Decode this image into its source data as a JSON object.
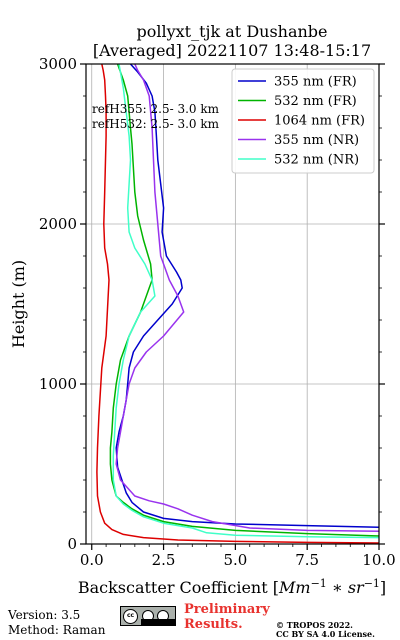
{
  "title_line1": "pollyxt_tjk at Dushanbe",
  "title_line2": "[Averaged] 20221107 13:48-15:17",
  "annotations": [
    "refH355:  2.5- 3.0 km",
    "refH532:  2.5- 3.0 km"
  ],
  "footer": {
    "version": "Version: 3.5",
    "method": "Method: Raman",
    "preliminary_line1": "Preliminary",
    "preliminary_line2": "Results.",
    "copyright_line1": "© TROPOS 2022.",
    "copyright_line2": "CC BY SA 4.0 License.",
    "license_badge_icon": "cc-by-sa-icon"
  },
  "chart_data": {
    "type": "line",
    "title": "pollyxt_tjk at Dushanbe\n[Averaged] 20221107 13:48-15:17",
    "xlabel": "Backscatter Coefficient [Mm^-1 * sr^-1]",
    "ylabel": "Height (m)",
    "xlim": [
      -0.2,
      10
    ],
    "ylim": [
      0,
      3000
    ],
    "xticks": [
      0.0,
      2.5,
      5.0,
      7.5,
      10.0
    ],
    "xtick_labels": [
      "0.0",
      "2.5",
      "5.0",
      "7.5",
      "10.0"
    ],
    "yticks": [
      0,
      1000,
      2000,
      3000
    ],
    "ytick_labels": [
      "0",
      "1000",
      "2000",
      "3000"
    ],
    "grid": true,
    "legend_position": "top-right",
    "series": [
      {
        "name": "355 nm (FR)",
        "color": "#0000cc",
        "x": [
          10.0,
          7.5,
          5.0,
          3.5,
          2.5,
          1.8,
          1.4,
          1.2,
          1.05,
          0.9,
          0.85,
          0.95,
          1.1,
          1.2,
          1.25,
          1.3,
          1.45,
          1.8,
          2.3,
          2.8,
          3.15,
          3.1,
          2.95,
          2.6,
          2.45,
          2.5,
          2.4,
          2.3,
          2.25,
          2.2,
          2.1,
          1.9,
          1.6,
          1.35
        ],
        "y": [
          105,
          115,
          125,
          140,
          160,
          200,
          260,
          320,
          400,
          480,
          600,
          700,
          800,
          900,
          1000,
          1100,
          1200,
          1300,
          1400,
          1500,
          1600,
          1650,
          1700,
          1800,
          1950,
          2100,
          2250,
          2400,
          2550,
          2700,
          2800,
          2880,
          2950,
          3000
        ]
      },
      {
        "name": "532 nm (FR)",
        "color": "#00b400",
        "x": [
          10.0,
          7.5,
          5.0,
          3.5,
          2.5,
          1.8,
          1.4,
          1.1,
          0.85,
          0.7,
          0.65,
          0.65,
          0.7,
          0.75,
          0.85,
          1.0,
          1.3,
          1.7,
          2.0,
          2.1,
          2.05,
          1.8,
          1.6,
          1.5,
          1.45,
          1.4,
          1.35,
          1.3,
          1.25,
          1.1,
          0.9
        ],
        "y": [
          50,
          65,
          85,
          110,
          140,
          180,
          220,
          260,
          300,
          400,
          500,
          600,
          700,
          850,
          1000,
          1150,
          1300,
          1450,
          1600,
          1650,
          1750,
          1900,
          2050,
          2200,
          2350,
          2500,
          2600,
          2700,
          2800,
          2900,
          3000
        ]
      },
      {
        "name": "1064 nm (FR)",
        "color": "#dd0000",
        "x": [
          10.0,
          7.5,
          5.0,
          3.0,
          1.8,
          1.1,
          0.7,
          0.45,
          0.3,
          0.2,
          0.18,
          0.2,
          0.25,
          0.35,
          0.5,
          0.6,
          0.55,
          0.45,
          0.42,
          0.45,
          0.48,
          0.5,
          0.5,
          0.48,
          0.45,
          0.4,
          0.35
        ],
        "y": [
          6,
          10,
          16,
          25,
          40,
          60,
          90,
          130,
          200,
          300,
          450,
          600,
          800,
          1100,
          1300,
          1650,
          1750,
          1850,
          2000,
          2200,
          2400,
          2550,
          2700,
          2800,
          2900,
          2960,
          3000
        ]
      },
      {
        "name": "355 nm (NR)",
        "color": "#9933ee",
        "x": [
          10.0,
          7.5,
          5.5,
          4.2,
          3.5,
          3.0,
          2.5,
          2.0,
          1.5,
          1.0,
          0.85,
          0.9,
          1.0,
          1.1,
          1.2,
          1.3,
          1.5,
          1.9,
          2.5,
          3.2,
          3.0,
          2.7,
          2.4,
          2.3,
          2.2,
          2.15,
          2.1,
          2.0,
          1.8,
          1.6,
          1.5
        ],
        "y": [
          80,
          85,
          100,
          140,
          180,
          220,
          250,
          270,
          300,
          400,
          500,
          600,
          700,
          800,
          900,
          1000,
          1100,
          1200,
          1300,
          1450,
          1550,
          1650,
          1800,
          2000,
          2200,
          2400,
          2600,
          2800,
          2900,
          2960,
          3000
        ]
      },
      {
        "name": "532 nm (NR)",
        "color": "#40ffc8",
        "x": [
          10.0,
          7.5,
          5.0,
          4.0,
          3.5,
          2.5,
          1.8,
          1.4,
          1.1,
          0.85,
          0.75,
          0.75,
          0.8,
          0.85,
          0.95,
          1.1,
          1.3,
          1.7,
          2.2,
          2.1,
          1.85,
          1.5,
          1.3,
          1.25,
          1.3,
          1.35,
          1.3,
          1.2,
          1.1,
          0.95
        ],
        "y": [
          40,
          45,
          55,
          70,
          100,
          130,
          170,
          210,
          250,
          300,
          400,
          550,
          700,
          850,
          1000,
          1150,
          1300,
          1450,
          1550,
          1650,
          1750,
          1850,
          1950,
          2100,
          2250,
          2400,
          2550,
          2700,
          2850,
          3000
        ]
      }
    ]
  }
}
